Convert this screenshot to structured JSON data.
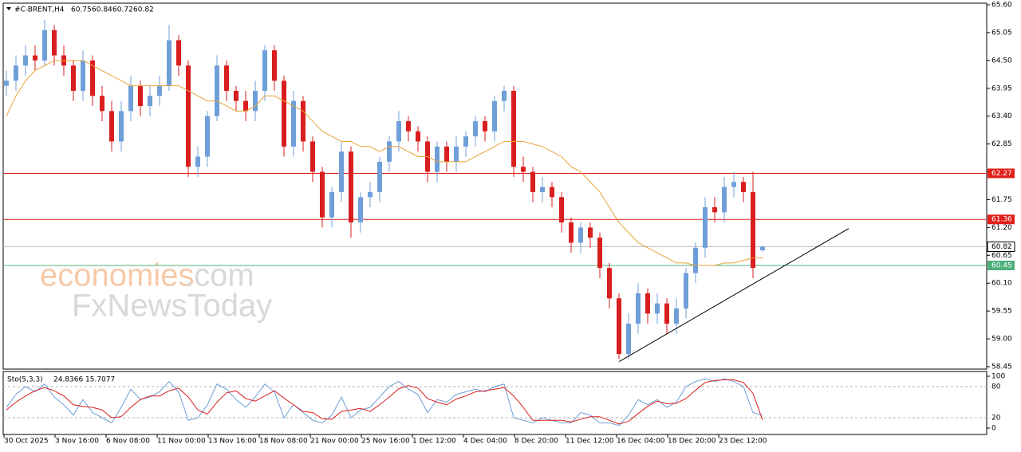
{
  "chart_data": {
    "type": "candlestick",
    "title": "#C-BRENT,H4",
    "x_labels": [
      "30 Oct 2025",
      "3 Nov 16:00",
      "6 Nov 08:00",
      "11 Nov 00:00",
      "13 Nov 16:00",
      "18 Nov 08:00",
      "21 Nov 00:00",
      "25 Nov 16:00",
      "1 Dec 12:00",
      "4 Dec 04:00",
      "8 Dec 20:00",
      "11 Dec 12:00",
      "16 Dec 04:00",
      "18 Dec 20:00",
      "23 Dec 12:00"
    ],
    "open": [
      64.0,
      64.1,
      64.4,
      64.6,
      64.5,
      65.1,
      64.6,
      64.4,
      63.9,
      64.5,
      63.8,
      63.5,
      62.9,
      63.5,
      64.0,
      63.6,
      63.8,
      64.0,
      64.9,
      64.4,
      62.4,
      62.6,
      63.4,
      64.4,
      63.9,
      63.7,
      63.5,
      63.9,
      64.7,
      64.1,
      62.8,
      63.7,
      62.9,
      62.3,
      61.4,
      61.9,
      62.7,
      61.3,
      61.8,
      61.9,
      62.5,
      62.9,
      63.3,
      63.1,
      62.9,
      62.3,
      62.8,
      62.5,
      62.8,
      63.0,
      63.3,
      63.1,
      63.7,
      63.9,
      62.4,
      62.3,
      61.9,
      62.0,
      61.8,
      61.3,
      60.9,
      61.2,
      61.0,
      60.4,
      59.8,
      58.7,
      59.3,
      59.9,
      59.5,
      59.7,
      59.3,
      59.6,
      60.3,
      60.8,
      61.6,
      61.5,
      62.0,
      62.1,
      61.9,
      60.75
    ],
    "high": [
      64.3,
      64.6,
      64.8,
      64.8,
      65.3,
      65.2,
      64.8,
      64.5,
      64.7,
      64.6,
      64.0,
      63.7,
      63.7,
      64.2,
      64.1,
      64.0,
      64.2,
      65.2,
      65.0,
      64.5,
      62.8,
      63.5,
      64.6,
      64.5,
      64.0,
      63.9,
      64.1,
      64.8,
      64.8,
      64.2,
      63.9,
      63.8,
      63.0,
      62.4,
      62.0,
      62.9,
      62.8,
      61.9,
      62.1,
      62.6,
      63.0,
      63.5,
      63.4,
      63.2,
      63.0,
      62.9,
      62.9,
      63.0,
      63.1,
      63.4,
      63.4,
      63.8,
      64.0,
      64.0,
      62.6,
      62.4,
      62.2,
      62.1,
      61.9,
      61.4,
      61.3,
      61.3,
      61.1,
      60.5,
      59.9,
      59.5,
      60.1,
      60.0,
      59.9,
      59.8,
      59.8,
      60.4,
      60.9,
      61.8,
      61.8,
      62.2,
      62.3,
      62.2,
      62.3,
      60.84
    ],
    "low": [
      63.8,
      63.9,
      64.2,
      64.3,
      64.4,
      64.4,
      64.2,
      63.7,
      63.7,
      63.6,
      63.3,
      62.7,
      62.7,
      63.3,
      63.4,
      63.4,
      63.6,
      63.9,
      64.2,
      62.2,
      62.2,
      62.4,
      63.3,
      63.7,
      63.5,
      63.3,
      63.3,
      63.7,
      63.9,
      62.6,
      62.6,
      62.7,
      62.1,
      61.2,
      61.2,
      61.7,
      61.0,
      61.1,
      61.6,
      61.7,
      62.3,
      62.7,
      62.9,
      62.7,
      62.1,
      62.1,
      62.3,
      62.3,
      62.6,
      62.8,
      62.9,
      62.9,
      63.5,
      62.2,
      62.1,
      61.7,
      61.7,
      61.6,
      61.1,
      60.7,
      60.7,
      60.8,
      60.2,
      59.6,
      58.6,
      58.6,
      59.1,
      59.3,
      59.3,
      59.1,
      59.1,
      59.4,
      60.1,
      60.6,
      61.3,
      61.3,
      61.8,
      61.7,
      60.2,
      60.72
    ],
    "close": [
      64.1,
      64.4,
      64.6,
      64.5,
      65.1,
      64.6,
      64.4,
      63.9,
      64.5,
      63.8,
      63.5,
      62.9,
      63.5,
      64.0,
      63.6,
      63.8,
      64.0,
      64.9,
      64.4,
      62.4,
      62.6,
      63.4,
      64.4,
      63.9,
      63.7,
      63.5,
      63.9,
      64.7,
      64.1,
      62.8,
      63.7,
      62.9,
      62.3,
      61.4,
      61.9,
      62.7,
      61.3,
      61.8,
      61.9,
      62.5,
      62.9,
      63.3,
      63.1,
      62.9,
      62.3,
      62.8,
      62.5,
      62.8,
      63.0,
      63.3,
      63.1,
      63.7,
      63.9,
      62.4,
      62.3,
      61.9,
      62.0,
      61.8,
      61.3,
      60.9,
      61.2,
      61.0,
      60.4,
      59.8,
      58.7,
      59.3,
      59.9,
      59.5,
      59.7,
      59.3,
      59.6,
      60.3,
      60.8,
      61.6,
      61.5,
      62.0,
      62.1,
      61.9,
      60.4,
      60.82
    ],
    "up_color": "#6f9fd8",
    "down_color": "#d81e1e",
    "ma": {
      "color": "#e8a33c",
      "values": [
        63.4,
        63.8,
        64.1,
        64.3,
        64.4,
        64.5,
        64.5,
        64.5,
        64.5,
        64.4,
        64.3,
        64.2,
        64.1,
        64.0,
        64.0,
        64.0,
        64.0,
        64.0,
        64.0,
        63.9,
        63.8,
        63.7,
        63.7,
        63.6,
        63.5,
        63.5,
        63.6,
        63.8,
        63.8,
        63.7,
        63.6,
        63.5,
        63.3,
        63.1,
        63.0,
        62.9,
        62.9,
        62.8,
        62.8,
        62.7,
        62.8,
        62.8,
        62.7,
        62.6,
        62.6,
        62.5,
        62.5,
        62.5,
        62.5,
        62.6,
        62.7,
        62.8,
        62.9,
        62.9,
        62.9,
        62.85,
        62.8,
        62.7,
        62.6,
        62.4,
        62.3,
        62.1,
        61.9,
        61.6,
        61.3,
        61.1,
        60.9,
        60.8,
        60.7,
        60.6,
        60.5,
        60.5,
        60.45,
        60.45,
        60.45,
        60.5,
        60.5,
        60.55,
        60.6,
        60.6
      ]
    },
    "levels": [
      {
        "value": 62.27,
        "color": "#e0201b"
      },
      {
        "value": 61.36,
        "color": "#e0201b"
      },
      {
        "value": 60.45,
        "color": "#4caf7a"
      }
    ],
    "trendline": {
      "start": {
        "index": 64,
        "price": 58.55
      },
      "end": {
        "index": 88,
        "price": 61.18
      }
    },
    "ylim": [
      58.45,
      65.6
    ],
    "yticks": [
      {
        "value": 65.6,
        "label": "65.60"
      },
      65.05,
      {
        "value": 64.5,
        "label": "64.50"
      },
      63.95,
      {
        "value": 63.4,
        "label": "63.40"
      },
      62.85,
      {
        "value": 62.3,
        "label": "62.30"
      },
      61.75,
      {
        "value": 61.2,
        "label": "61.20"
      },
      60.65,
      {
        "value": 60.1,
        "label": "60.10"
      },
      59.55,
      {
        "value": 59.0,
        "label": "59.00"
      },
      58.45
    ],
    "stochastic": {
      "title": "Sto(5,3,3)",
      "ylim": [
        0,
        100
      ],
      "yticks": [
        100,
        80,
        20,
        0
      ],
      "series": [
        {
          "color": "#6f9fd8",
          "values": [
            40,
            65,
            80,
            70,
            85,
            60,
            45,
            25,
            55,
            30,
            20,
            10,
            40,
            75,
            55,
            60,
            70,
            90,
            70,
            15,
            20,
            45,
            85,
            75,
            55,
            40,
            60,
            85,
            70,
            20,
            45,
            30,
            15,
            10,
            25,
            60,
            20,
            35,
            40,
            60,
            80,
            90,
            75,
            65,
            30,
            55,
            50,
            65,
            70,
            75,
            70,
            80,
            85,
            20,
            15,
            10,
            20,
            15,
            10,
            10,
            30,
            25,
            10,
            10,
            5,
            25,
            55,
            45,
            55,
            40,
            50,
            80,
            90,
            95,
            90,
            95,
            90,
            80,
            30,
            24.8366
          ]
        },
        {
          "color": "#d81e1e",
          "values": [
            35,
            50,
            62,
            72,
            78,
            72,
            62,
            45,
            42,
            40,
            35,
            20,
            22,
            40,
            55,
            62,
            62,
            72,
            77,
            60,
            35,
            27,
            50,
            68,
            72,
            57,
            52,
            62,
            72,
            58,
            45,
            32,
            30,
            18,
            17,
            32,
            35,
            38,
            32,
            45,
            60,
            76,
            82,
            77,
            57,
            50,
            45,
            56,
            62,
            70,
            72,
            75,
            78,
            62,
            40,
            15,
            15,
            15,
            15,
            12,
            17,
            22,
            22,
            15,
            8,
            13,
            28,
            42,
            52,
            47,
            48,
            57,
            73,
            88,
            92,
            93,
            93,
            88,
            67,
            15.7077
          ]
        }
      ]
    },
    "watermark": [
      "economies",
      ".com",
      "FxNewsToday"
    ]
  }
}
